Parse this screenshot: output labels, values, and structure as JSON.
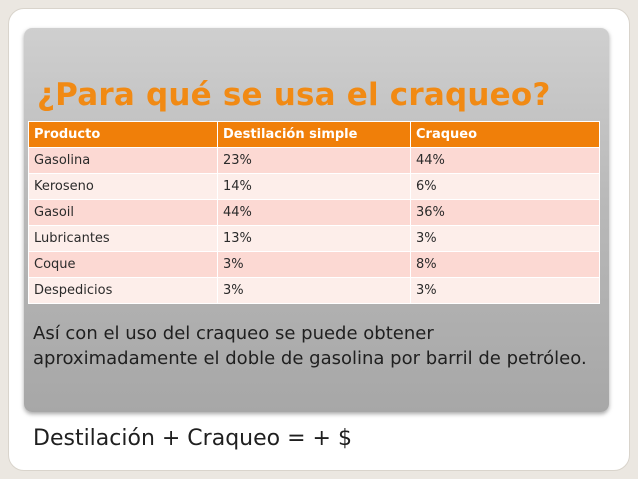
{
  "slide": {
    "title": "¿Para qué se usa el craqueo?",
    "table": {
      "headers": [
        "Producto",
        "Destilación simple",
        "Craqueo"
      ],
      "rows": [
        [
          "Gasolina",
          "23%",
          "44%"
        ],
        [
          "Keroseno",
          "14%",
          "6%"
        ],
        [
          "Gasoil",
          "44%",
          "36%"
        ],
        [
          "Lubricantes",
          "13%",
          "3%"
        ],
        [
          "Coque",
          "3%",
          "8%"
        ],
        [
          "Despedicios",
          "3%",
          "3%"
        ]
      ]
    },
    "body_text": "Así con el uso del craqueo se  puede obtener aproximadamente el doble de gasolina por barril de petróleo.",
    "formula": "Destilación + Craqueo = + $"
  },
  "colors": {
    "accent": "#f18a14",
    "header_fill": "#f07f09",
    "row_odd": "#fcd9d3",
    "row_even": "#fdeeea",
    "panel_gray": "#b9b9b9"
  }
}
